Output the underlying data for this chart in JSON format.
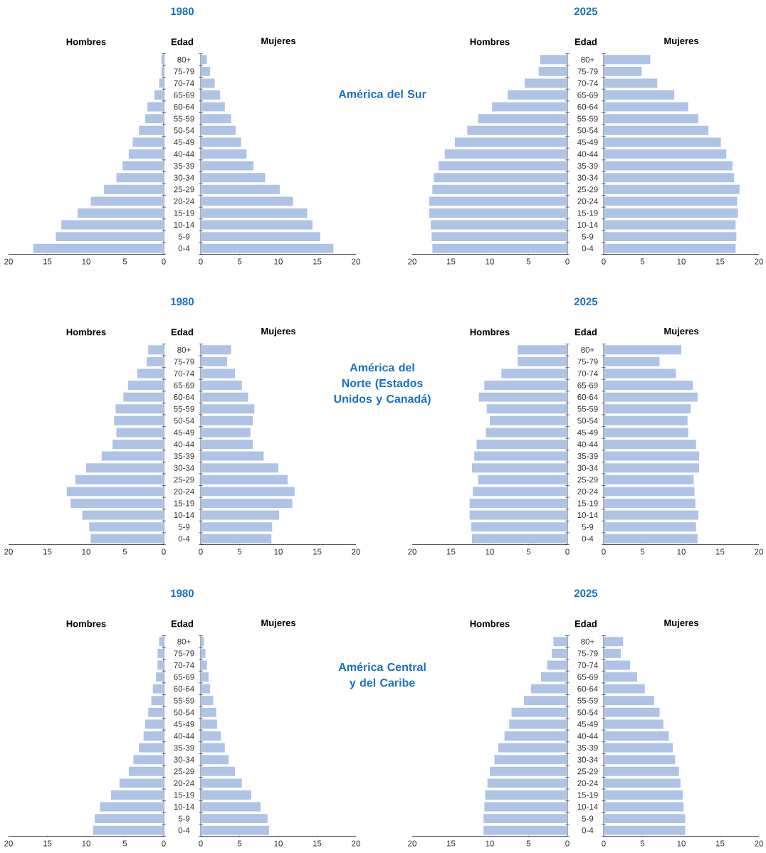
{
  "chart_data": [
    {
      "type": "bar",
      "orientation": "horizontal",
      "title": "1980",
      "xlabel": "Hombres",
      "ylabel": "Edad",
      "categories": [
        "80+",
        "75-79",
        "70-74",
        "65-69",
        "60-64",
        "55-59",
        "50-54",
        "45-49",
        "40-44",
        "35-39",
        "30-34",
        "25-29",
        "20-24",
        "15-19",
        "10-14",
        "5-9",
        "0-4"
      ],
      "values": [
        0.3,
        0.3,
        0.6,
        1.2,
        2.1,
        2.4,
        3.2,
        4.0,
        4.5,
        5.3,
        6.1,
        7.7,
        9.4,
        11.1,
        13.2,
        13.9,
        16.8
      ],
      "color": "#aec3e5",
      "xlim": [
        20,
        0
      ],
      "xticks": [
        20,
        15,
        10,
        5,
        0
      ]
    },
    {
      "type": "bar",
      "orientation": "horizontal",
      "xlabel": "Mujeres",
      "categories": [
        null,
        null,
        null,
        null,
        null,
        null,
        null,
        null,
        null,
        null,
        null,
        null,
        null,
        null,
        null,
        null,
        null
      ],
      "values": [
        0.8,
        1.2,
        1.8,
        2.5,
        3.1,
        3.9,
        4.5,
        5.2,
        5.9,
        6.8,
        8.3,
        10.2,
        11.9,
        13.7,
        14.4,
        15.4,
        17.1
      ],
      "color": "#aec3e5",
      "xlim": [
        0,
        20
      ],
      "xticks": [
        0,
        5,
        10,
        15,
        20
      ],
      "tick_labels": "x",
      "annotations": [
        "América del Sur"
      ]
    },
    {
      "type": "bar",
      "orientation": "horizontal",
      "title": "2025",
      "xlabel": "Hombres",
      "ylabel": "Edad",
      "categories": [
        "80+",
        "75-79",
        "70-74",
        "65-69",
        "60-64",
        "55-59",
        "50-54",
        "45-49",
        "40-44",
        "35-39",
        "30-34",
        "25-29",
        "20-24",
        "15-19",
        "10-14",
        "5-9",
        "0-4"
      ],
      "values": [
        3.5,
        3.7,
        5.5,
        7.7,
        9.7,
        11.5,
        12.9,
        14.5,
        15.8,
        16.6,
        17.2,
        17.4,
        17.8,
        17.8,
        17.6,
        17.5,
        17.4
      ],
      "color": "#aec3e5",
      "xlim": [
        20,
        0
      ],
      "xticks": [
        20,
        15,
        10,
        5,
        0
      ]
    },
    {
      "type": "bar",
      "orientation": "horizontal",
      "xlabel": "Mujeres",
      "categories": [
        null,
        null,
        null,
        null,
        null,
        null,
        null,
        null,
        null,
        null,
        null,
        null,
        null,
        null,
        null,
        null,
        null
      ],
      "values": [
        6.0,
        4.9,
        6.9,
        9.1,
        10.9,
        12.2,
        13.5,
        15.1,
        15.8,
        16.6,
        16.8,
        17.5,
        17.2,
        17.3,
        17.0,
        17.1,
        17.0
      ],
      "color": "#aec3e5",
      "xlim": [
        0,
        20
      ],
      "xticks": [
        0,
        5,
        10,
        15,
        20
      ],
      "tick_labels": "x"
    },
    {
      "type": "bar",
      "orientation": "horizontal",
      "title": "1980",
      "xlabel": "Hombres",
      "ylabel": "Edad",
      "categories": [
        "80+",
        "75-79",
        "70-74",
        "65-69",
        "60-64",
        "55-59",
        "50-54",
        "45-49",
        "40-44",
        "35-39",
        "30-34",
        "25-29",
        "20-24",
        "15-19",
        "10-14",
        "5-9",
        "0-4"
      ],
      "values": [
        2.0,
        2.2,
        3.4,
        4.6,
        5.2,
        6.2,
        6.4,
        6.1,
        6.6,
        8.0,
        10.0,
        11.4,
        12.5,
        12.0,
        10.5,
        9.6,
        9.4
      ],
      "color": "#aec3e5",
      "xlim": [
        20,
        0
      ],
      "xticks": [
        20,
        15,
        10,
        5,
        0
      ]
    },
    {
      "type": "bar",
      "orientation": "horizontal",
      "xlabel": "Mujeres",
      "categories": [
        null,
        null,
        null,
        null,
        null,
        null,
        null,
        null,
        null,
        null,
        null,
        null,
        null,
        null,
        null,
        null,
        null
      ],
      "values": [
        3.9,
        3.4,
        4.4,
        5.3,
        6.1,
        6.9,
        6.7,
        6.4,
        6.7,
        8.1,
        10.0,
        11.2,
        12.1,
        11.8,
        10.1,
        9.2,
        9.1
      ],
      "color": "#aec3e5",
      "xlim": [
        0,
        20
      ],
      "xticks": [
        0,
        5,
        10,
        15,
        20
      ],
      "tick_labels": "x",
      "annotations": [
        "América del Norte (Estados Unidos y Canadá)"
      ]
    },
    {
      "type": "bar",
      "orientation": "horizontal",
      "title": "2025",
      "xlabel": "Hombres",
      "ylabel": "Edad",
      "categories": [
        "80+",
        "75-79",
        "70-74",
        "65-69",
        "60-64",
        "55-59",
        "50-54",
        "45-49",
        "40-44",
        "35-39",
        "30-34",
        "25-29",
        "20-24",
        "15-19",
        "10-14",
        "5-9",
        "0-4"
      ],
      "values": [
        6.4,
        6.4,
        8.5,
        10.7,
        11.4,
        10.4,
        10.0,
        10.5,
        11.7,
        12.0,
        12.3,
        11.5,
        12.2,
        12.6,
        12.6,
        12.4,
        12.3
      ],
      "color": "#aec3e5",
      "xlim": [
        20,
        0
      ],
      "xticks": [
        20,
        15,
        10,
        5,
        0
      ]
    },
    {
      "type": "bar",
      "orientation": "horizontal",
      "xlabel": "Mujeres",
      "categories": [
        null,
        null,
        null,
        null,
        null,
        null,
        null,
        null,
        null,
        null,
        null,
        null,
        null,
        null,
        null,
        null,
        null
      ],
      "values": [
        10.0,
        7.2,
        9.3,
        11.5,
        12.1,
        11.2,
        10.8,
        10.9,
        11.9,
        12.3,
        12.3,
        11.6,
        11.7,
        11.8,
        12.2,
        11.9,
        12.1
      ],
      "color": "#aec3e5",
      "xlim": [
        0,
        20
      ],
      "xticks": [
        0,
        5,
        10,
        15,
        20
      ],
      "tick_labels": "x"
    },
    {
      "type": "bar",
      "orientation": "horizontal",
      "title": "1980",
      "xlabel": "Hombres",
      "ylabel": "Edad",
      "categories": [
        "80+",
        "75-79",
        "70-74",
        "65-69",
        "60-64",
        "55-59",
        "50-54",
        "45-49",
        "40-44",
        "35-39",
        "30-34",
        "25-29",
        "20-24",
        "15-19",
        "10-14",
        "5-9",
        "0-4"
      ],
      "values": [
        0.6,
        0.8,
        0.8,
        1.0,
        1.4,
        1.6,
        2.0,
        2.4,
        2.6,
        3.2,
        3.9,
        4.5,
        5.7,
        6.8,
        8.2,
        8.9,
        9.1
      ],
      "color": "#aec3e5",
      "xlim": [
        20,
        0
      ],
      "xticks": [
        20,
        15,
        10,
        5,
        0
      ]
    },
    {
      "type": "bar",
      "orientation": "horizontal",
      "xlabel": "Mujeres",
      "categories": [
        null,
        null,
        null,
        null,
        null,
        null,
        null,
        null,
        null,
        null,
        null,
        null,
        null,
        null,
        null,
        null,
        null
      ],
      "values": [
        0.4,
        0.6,
        0.8,
        1.0,
        1.2,
        1.6,
        2.0,
        2.1,
        2.6,
        3.1,
        3.6,
        4.4,
        5.3,
        6.5,
        7.7,
        8.6,
        8.8
      ],
      "color": "#aec3e5",
      "xlim": [
        0,
        20
      ],
      "xticks": [
        0,
        5,
        10,
        15,
        20
      ],
      "tick_labels": "x",
      "annotations": [
        "América Central y del Caribe"
      ]
    },
    {
      "type": "bar",
      "orientation": "horizontal",
      "title": "2025",
      "xlabel": "Hombres",
      "ylabel": "Edad",
      "categories": [
        "80+",
        "75-79",
        "70-74",
        "65-69",
        "60-64",
        "55-59",
        "50-54",
        "45-49",
        "40-44",
        "35-39",
        "30-34",
        "25-29",
        "20-24",
        "15-19",
        "10-14",
        "5-9",
        "0-4"
      ],
      "values": [
        1.8,
        2.0,
        2.6,
        3.4,
        4.7,
        5.6,
        7.2,
        7.5,
        8.1,
        8.9,
        9.4,
        10.0,
        10.3,
        10.6,
        10.7,
        10.8,
        10.8
      ],
      "color": "#aec3e5",
      "xlim": [
        20,
        0
      ],
      "xticks": [
        20,
        15,
        10,
        5,
        0
      ]
    },
    {
      "type": "bar",
      "orientation": "horizontal",
      "xlabel": "Mujeres",
      "categories": [
        null,
        null,
        null,
        null,
        null,
        null,
        null,
        null,
        null,
        null,
        null,
        null,
        null,
        null,
        null,
        null,
        null
      ],
      "values": [
        2.5,
        2.2,
        3.4,
        4.3,
        5.3,
        6.5,
        7.2,
        7.7,
        8.4,
        8.9,
        9.2,
        9.7,
        9.9,
        10.2,
        10.3,
        10.5,
        10.5
      ],
      "color": "#aec3e5",
      "xlim": [
        0,
        20
      ],
      "xticks": [
        0,
        5,
        10,
        15,
        20
      ],
      "tick_labels": "x"
    }
  ]
}
